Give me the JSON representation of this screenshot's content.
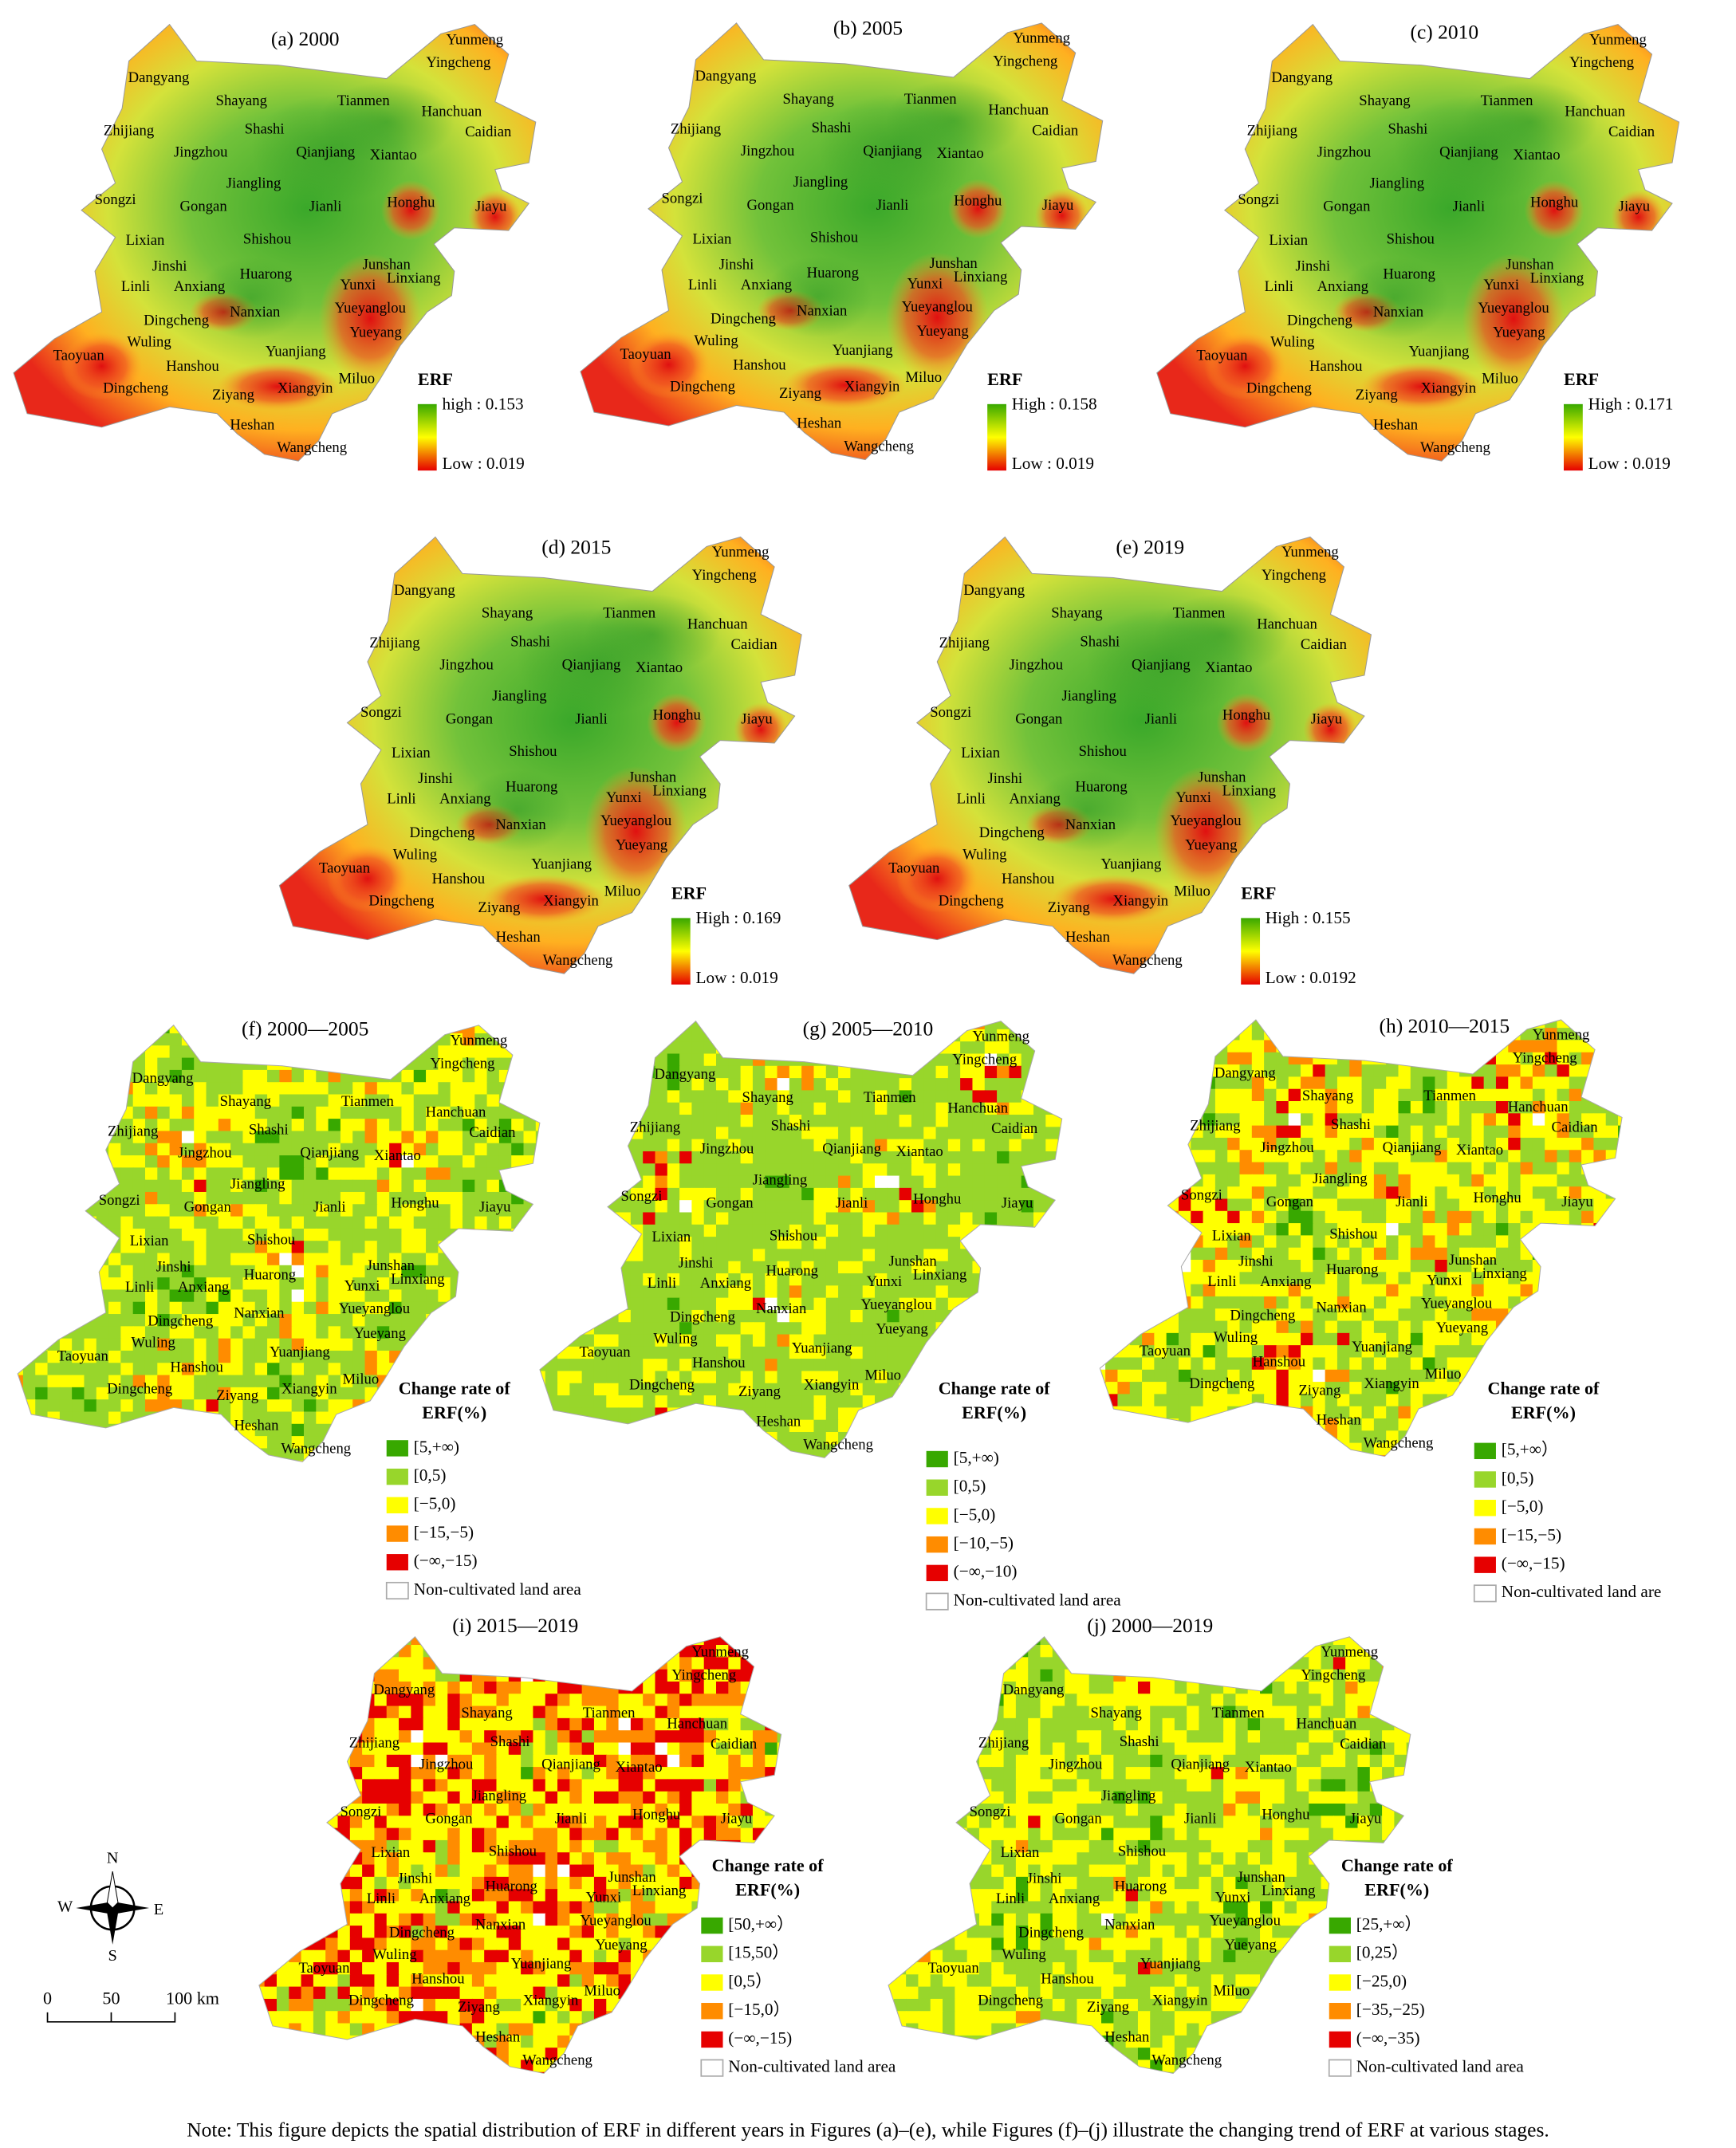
{
  "maps": [
    {
      "title": "(a) 2000",
      "legend_title": "ERF",
      "high_label": "high : 0.153",
      "low_label": "Low : 0.019"
    },
    {
      "title": "(b) 2005",
      "legend_title": "ERF",
      "high_label": "High : 0.158",
      "low_label": "Low : 0.019"
    },
    {
      "title": "(c) 2010",
      "legend_title": "ERF",
      "high_label": "High : 0.171",
      "low_label": "Low : 0.019"
    },
    {
      "title": "(d) 2015",
      "legend_title": "ERF",
      "high_label": "High : 0.169",
      "low_label": "Low : 0.019"
    },
    {
      "title": "(e) 2019",
      "legend_title": "ERF",
      "high_label": "High : 0.155",
      "low_label": "Low : 0.0192"
    }
  ],
  "change_maps": [
    {
      "title": "(f) 2000—2005",
      "legend_title": [
        "Change rate of",
        "ERF(%)"
      ],
      "classes": [
        "[5,+∞)",
        "[0,5)",
        "[−5,0)",
        "[−15,−5)",
        "(−∞,−15)",
        "Non-cultivated land area"
      ]
    },
    {
      "title": "(g) 2005—2010",
      "legend_title": [
        "Change rate of",
        "ERF(%)"
      ],
      "classes": [
        "[5,+∞)",
        "[0,5)",
        "[−5,0)",
        "[−10,−5)",
        "(−∞,−10)",
        "Non-cultivated land area"
      ]
    },
    {
      "title": "(h) 2010—2015",
      "legend_title": [
        "Change rate of",
        "ERF(%)"
      ],
      "classes": [
        "[5,+∞）",
        "[0,5)",
        "[−5,0)",
        "[−15,−5)",
        "(−∞,−15)",
        "Non-cultivated land are"
      ]
    },
    {
      "title": "(i) 2015—2019",
      "legend_title": [
        "Change rate of",
        "ERF(%)"
      ],
      "classes": [
        "[50,+∞）",
        "[15,50）",
        "[0,5）",
        "[−15,0）",
        "(−∞,−15)",
        "Non-cultivated land area"
      ]
    },
    {
      "title": "(j) 2000—2019",
      "legend_title": [
        "Change rate of",
        "ERF(%)"
      ],
      "classes": [
        "[25,+∞）",
        "[0,25）",
        "[−25,0)",
        "[−35,−25)",
        "(−∞,−35)",
        "Non-cultivated land area"
      ]
    }
  ],
  "legend_colors": [
    "#38a800",
    "#98d62b",
    "#ffff00",
    "#ff8c00",
    "#e60000",
    "#ffffff"
  ],
  "place_names": [
    "Yunmeng",
    "Yingcheng",
    "Dangyang",
    "Shayang",
    "Tianmen",
    "Hanchuan",
    "Caidian",
    "Zhijiang",
    "Shashi",
    "Jingzhou",
    "Qianjiang",
    "Xiantao",
    "Jiangling",
    "Songzi",
    "Gongan",
    "Jianli",
    "Honghu",
    "Jiayu",
    "Lixian",
    "Shishou",
    "Jinshi",
    "Junshan",
    "Linli",
    "Anxiang",
    "Huarong",
    "Yunxi",
    "Linxiang",
    "Dingcheng",
    "Nanxian",
    "Yueyanglou",
    "Wuling",
    "Yueyang",
    "Taoyuan",
    "Yuanjiang",
    "Hanshou",
    "Miluo",
    "Dingcheng",
    "Ziyang",
    "Xiangyin",
    "Heshan",
    "Wangcheng"
  ],
  "compass": {
    "north": "N",
    "south": "S",
    "west": "W",
    "east": "E"
  },
  "scale_bar": [
    "0",
    "50",
    "100 km"
  ],
  "note": "Note: This figure depicts the spatial distribution of ERF in different years in Figures (a)–(e), while Figures (f)–(j) illustrate the changing trend of ERF  at various stages."
}
